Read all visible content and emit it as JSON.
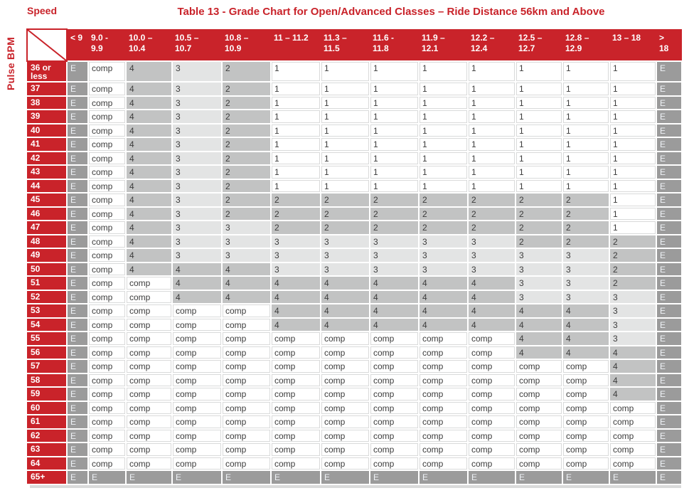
{
  "page": {
    "title": "Table 13 - Grade Chart for Open/Advanced Classes – Ride Distance 56km and Above",
    "speed_axis_label": "Speed",
    "pulse_axis_label": "Pulse BPM"
  },
  "colors": {
    "red": "#c9232a",
    "dark_gray": "#9b9b9b",
    "mid_gray": "#c2c3c3",
    "light_gray": "#e3e4e4",
    "hairline": "#d9dada",
    "cell_text": "#3c3c3c",
    "e_text": "#eef1f5"
  },
  "chart_data": {
    "type": "table",
    "x_axis_title": "Speed",
    "y_axis_title": "Pulse BPM",
    "columns": [
      "< 9",
      "9.0 -\n9.9",
      "10.0 –\n10.4",
      "10.5 –\n10.7",
      "10.8 –\n10.9",
      "11 – 11.2",
      "11.3 –\n11.5",
      "11.6 -\n11.8",
      "11.9 –\n12.1",
      "12.2 –\n12.4",
      "12.5 –\n12.7",
      "12.8 –\n12.9",
      "13 – 18",
      ">\n18"
    ],
    "rows": [
      {
        "pulse": "36 or\nless",
        "cells": [
          "E",
          "comp",
          "4",
          "3",
          "2",
          "1",
          "1",
          "1",
          "1",
          "1",
          "1",
          "1",
          "1",
          "E"
        ]
      },
      {
        "pulse": "37",
        "cells": [
          "E",
          "comp",
          "4",
          "3",
          "2",
          "1",
          "1",
          "1",
          "1",
          "1",
          "1",
          "1",
          "1",
          "E"
        ]
      },
      {
        "pulse": "38",
        "cells": [
          "E",
          "comp",
          "4",
          "3",
          "2",
          "1",
          "1",
          "1",
          "1",
          "1",
          "1",
          "1",
          "1",
          "E"
        ]
      },
      {
        "pulse": "39",
        "cells": [
          "E",
          "comp",
          "4",
          "3",
          "2",
          "1",
          "1",
          "1",
          "1",
          "1",
          "1",
          "1",
          "1",
          "E"
        ]
      },
      {
        "pulse": "40",
        "cells": [
          "E",
          "comp",
          "4",
          "3",
          "2",
          "1",
          "1",
          "1",
          "1",
          "1",
          "1",
          "1",
          "1",
          "E"
        ]
      },
      {
        "pulse": "41",
        "cells": [
          "E",
          "comp",
          "4",
          "3",
          "2",
          "1",
          "1",
          "1",
          "1",
          "1",
          "1",
          "1",
          "1",
          "E"
        ]
      },
      {
        "pulse": "42",
        "cells": [
          "E",
          "comp",
          "4",
          "3",
          "2",
          "1",
          "1",
          "1",
          "1",
          "1",
          "1",
          "1",
          "1",
          "E"
        ]
      },
      {
        "pulse": "43",
        "cells": [
          "E",
          "comp",
          "4",
          "3",
          "2",
          "1",
          "1",
          "1",
          "1",
          "1",
          "1",
          "1",
          "1",
          "E"
        ]
      },
      {
        "pulse": "44",
        "cells": [
          "E",
          "comp",
          "4",
          "3",
          "2",
          "1",
          "1",
          "1",
          "1",
          "1",
          "1",
          "1",
          "1",
          "E"
        ]
      },
      {
        "pulse": "45",
        "cells": [
          "E",
          "comp",
          "4",
          "3",
          "2",
          "2",
          "2",
          "2",
          "2",
          "2",
          "2",
          "2",
          "1",
          "E"
        ]
      },
      {
        "pulse": "46",
        "cells": [
          "E",
          "comp",
          "4",
          "3",
          "2",
          "2",
          "2",
          "2",
          "2",
          "2",
          "2",
          "2",
          "1",
          "E"
        ]
      },
      {
        "pulse": "47",
        "cells": [
          "E",
          "comp",
          "4",
          "3",
          "3",
          "2",
          "2",
          "2",
          "2",
          "2",
          "2",
          "2",
          "1",
          "E"
        ]
      },
      {
        "pulse": "48",
        "cells": [
          "E",
          "comp",
          "4",
          "3",
          "3",
          "3",
          "3",
          "3",
          "3",
          "3",
          "2",
          "2",
          "2",
          "E"
        ]
      },
      {
        "pulse": "49",
        "cells": [
          "E",
          "comp",
          "4",
          "3",
          "3",
          "3",
          "3",
          "3",
          "3",
          "3",
          "3",
          "3",
          "2",
          "E"
        ]
      },
      {
        "pulse": "50",
        "cells": [
          "E",
          "comp",
          "4",
          "4",
          "4",
          "3",
          "3",
          "3",
          "3",
          "3",
          "3",
          "3",
          "2",
          "E"
        ]
      },
      {
        "pulse": "51",
        "cells": [
          "E",
          "comp",
          "comp",
          "4",
          "4",
          "4",
          "4",
          "4",
          "4",
          "4",
          "3",
          "3",
          "2",
          "E"
        ]
      },
      {
        "pulse": "52",
        "cells": [
          "E",
          "comp",
          "comp",
          "4",
          "4",
          "4",
          "4",
          "4",
          "4",
          "4",
          "3",
          "3",
          "3",
          "E"
        ]
      },
      {
        "pulse": "53",
        "cells": [
          "E",
          "comp",
          "comp",
          "comp",
          "comp",
          "4",
          "4",
          "4",
          "4",
          "4",
          "4",
          "4",
          "3",
          "E"
        ]
      },
      {
        "pulse": "54",
        "cells": [
          "E",
          "comp",
          "comp",
          "comp",
          "comp",
          "4",
          "4",
          "4",
          "4",
          "4",
          "4",
          "4",
          "3",
          "E"
        ]
      },
      {
        "pulse": "55",
        "cells": [
          "E",
          "comp",
          "comp",
          "comp",
          "comp",
          "comp",
          "comp",
          "comp",
          "comp",
          "comp",
          "4",
          "4",
          "3",
          "E"
        ]
      },
      {
        "pulse": "56",
        "cells": [
          "E",
          "comp",
          "comp",
          "comp",
          "comp",
          "comp",
          "comp",
          "comp",
          "comp",
          "comp",
          "4",
          "4",
          "4",
          "E"
        ]
      },
      {
        "pulse": "57",
        "cells": [
          "E",
          "comp",
          "comp",
          "comp",
          "comp",
          "comp",
          "comp",
          "comp",
          "comp",
          "comp",
          "comp",
          "comp",
          "4",
          "E"
        ]
      },
      {
        "pulse": "58",
        "cells": [
          "E",
          "comp",
          "comp",
          "comp",
          "comp",
          "comp",
          "comp",
          "comp",
          "comp",
          "comp",
          "comp",
          "comp",
          "4",
          "E"
        ]
      },
      {
        "pulse": "59",
        "cells": [
          "E",
          "comp",
          "comp",
          "comp",
          "comp",
          "comp",
          "comp",
          "comp",
          "comp",
          "comp",
          "comp",
          "comp",
          "4",
          "E"
        ]
      },
      {
        "pulse": "60",
        "cells": [
          "E",
          "comp",
          "comp",
          "comp",
          "comp",
          "comp",
          "comp",
          "comp",
          "comp",
          "comp",
          "comp",
          "comp",
          "comp",
          "E"
        ]
      },
      {
        "pulse": "61",
        "cells": [
          "E",
          "comp",
          "comp",
          "comp",
          "comp",
          "comp",
          "comp",
          "comp",
          "comp",
          "comp",
          "comp",
          "comp",
          "comp",
          "E"
        ]
      },
      {
        "pulse": "62",
        "cells": [
          "E",
          "comp",
          "comp",
          "comp",
          "comp",
          "comp",
          "comp",
          "comp",
          "comp",
          "comp",
          "comp",
          "comp",
          "comp",
          "E"
        ]
      },
      {
        "pulse": "63",
        "cells": [
          "E",
          "comp",
          "comp",
          "comp",
          "comp",
          "comp",
          "comp",
          "comp",
          "comp",
          "comp",
          "comp",
          "comp",
          "comp",
          "E"
        ]
      },
      {
        "pulse": "64",
        "cells": [
          "E",
          "comp",
          "comp",
          "comp",
          "comp",
          "comp",
          "comp",
          "comp",
          "comp",
          "comp",
          "comp",
          "comp",
          "comp",
          "E"
        ]
      },
      {
        "pulse": "65+",
        "cells": [
          "E",
          "E",
          "E",
          "E",
          "E",
          "E",
          "E",
          "E",
          "E",
          "E",
          "E",
          "E",
          "E",
          "E"
        ]
      }
    ]
  }
}
